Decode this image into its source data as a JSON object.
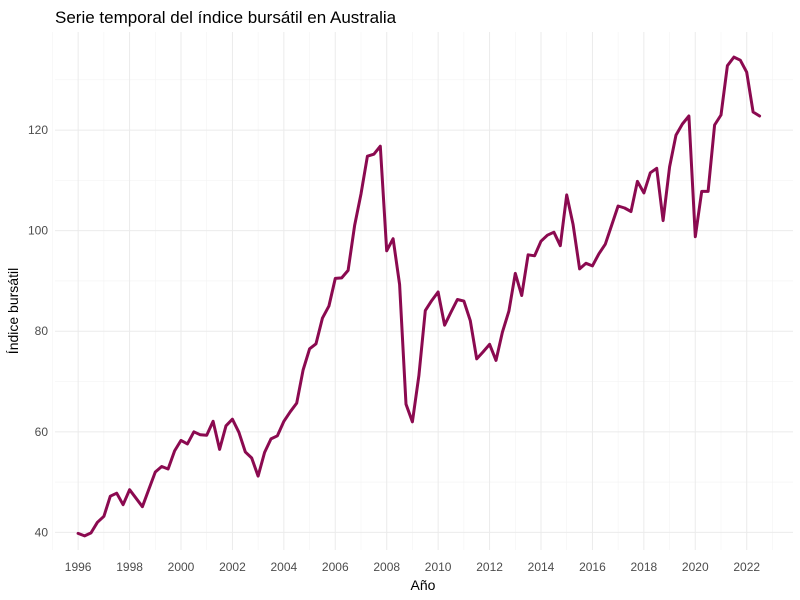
{
  "chart_data": {
    "type": "line",
    "title": "Serie temporal del índice bursátil en Australia",
    "xlabel": "Año",
    "ylabel": "Índice bursátil",
    "xlim": [
      1995.1,
      2023.8
    ],
    "ylim": [
      36.5,
      139.5
    ],
    "x_major_ticks": [
      1996,
      1998,
      2000,
      2002,
      2004,
      2006,
      2008,
      2010,
      2012,
      2014,
      2016,
      2018,
      2020,
      2022
    ],
    "x_tick_labels": [
      "1996",
      "1998",
      "2000",
      "2002",
      "2004",
      "2006",
      "2008",
      "2010",
      "2012",
      "2014",
      "2016",
      "2018",
      "2020",
      "2022"
    ],
    "x_minor_ticks": [
      1995,
      1997,
      1999,
      2001,
      2003,
      2005,
      2007,
      2009,
      2011,
      2013,
      2015,
      2017,
      2019,
      2021,
      2023
    ],
    "y_major_ticks": [
      40,
      60,
      80,
      100,
      120
    ],
    "y_tick_labels": [
      "40",
      "60",
      "80",
      "100",
      "120"
    ],
    "y_minor_ticks": [
      50,
      70,
      90,
      110,
      130
    ],
    "grid": true,
    "colors": {
      "line": "#8b0a50"
    },
    "series": [
      {
        "x": [
          1996.0,
          1996.25,
          1996.5,
          1996.75,
          1997.0,
          1997.25,
          1997.5,
          1997.75,
          1998.0,
          1998.25,
          1998.5,
          1998.75,
          1999.0,
          1999.25,
          1999.5,
          1999.75,
          2000.0,
          2000.25,
          2000.5,
          2000.75,
          2001.0,
          2001.25,
          2001.5,
          2001.75,
          2002.0,
          2002.25,
          2002.5,
          2002.75,
          2003.0,
          2003.25,
          2003.5,
          2003.75,
          2004.0,
          2004.25,
          2004.5,
          2004.75,
          2005.0,
          2005.25,
          2005.5,
          2005.75,
          2006.0,
          2006.25,
          2006.5,
          2006.75,
          2007.0,
          2007.25,
          2007.5,
          2007.75,
          2008.0,
          2008.25,
          2008.5,
          2008.75,
          2009.0,
          2009.25,
          2009.5,
          2009.75,
          2010.0,
          2010.25,
          2010.5,
          2010.75,
          2011.0,
          2011.25,
          2011.5,
          2011.75,
          2012.0,
          2012.25,
          2012.5,
          2012.75,
          2013.0,
          2013.25,
          2013.5,
          2013.75,
          2014.0,
          2014.25,
          2014.5,
          2014.75,
          2015.0,
          2015.25,
          2015.5,
          2015.75,
          2016.0,
          2016.25,
          2016.5,
          2016.75,
          2017.0,
          2017.25,
          2017.5,
          2017.75,
          2018.0,
          2018.25,
          2018.5,
          2018.75,
          2019.0,
          2019.25,
          2019.5,
          2019.75,
          2020.0,
          2020.25,
          2020.5,
          2020.75,
          2021.0,
          2021.25,
          2021.5,
          2021.75,
          2022.0,
          2022.25,
          2022.5
        ],
        "values": [
          39.8,
          39.3,
          39.9,
          42.0,
          43.2,
          47.2,
          47.8,
          45.5,
          48.5,
          46.8,
          45.1,
          48.6,
          52.0,
          53.1,
          52.6,
          56.2,
          58.3,
          57.6,
          60.0,
          59.4,
          59.3,
          62.1,
          56.5,
          61.2,
          62.5,
          59.9,
          56.0,
          54.8,
          51.2,
          55.9,
          58.6,
          59.2,
          62.1,
          64.0,
          65.7,
          72.3,
          76.5,
          77.5,
          82.6,
          85.0,
          90.5,
          90.6,
          92.1,
          101.0,
          107.3,
          114.8,
          115.2,
          116.8,
          96.0,
          98.4,
          89.3,
          65.5,
          62.0,
          71.2,
          84.1,
          86.1,
          87.8,
          81.2,
          83.8,
          86.3,
          86.0,
          82.1,
          74.5,
          75.9,
          77.4,
          74.2,
          79.8,
          84.0,
          91.5,
          87.1,
          95.2,
          95.0,
          97.9,
          99.1,
          99.7,
          97.0,
          107.1,
          101.2,
          92.4,
          93.5,
          93.0,
          95.4,
          97.3,
          101.1,
          104.9,
          104.5,
          103.8,
          109.8,
          107.5,
          111.5,
          112.4,
          102.0,
          112.7,
          119.0,
          121.2,
          122.8,
          98.8,
          107.8,
          107.8,
          121.0,
          123.0,
          132.8,
          134.5,
          133.9,
          131.5,
          123.6,
          122.8
        ]
      }
    ]
  }
}
